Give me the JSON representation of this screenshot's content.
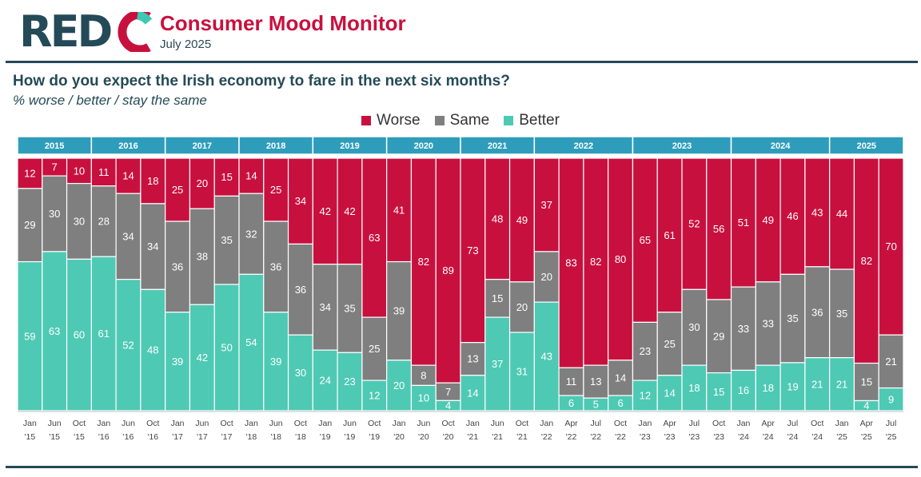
{
  "header": {
    "logo_red": "RED",
    "logo_c": "C",
    "title": "Consumer Mood Monitor",
    "subtitle": "July 2025"
  },
  "question": {
    "text": "How do you expect the Irish economy to fare in the next six months?",
    "sub": "% worse / better / stay the same"
  },
  "colors": {
    "worse": "#c8103e",
    "same": "#7f7f7f",
    "better": "#4ec9b4",
    "year_band": "#2e9dbb",
    "brand_dark": "#244a57",
    "brand_teal": "#3ec8b3"
  },
  "chart_data": {
    "type": "bar",
    "stacked": true,
    "legend_position": "top-center",
    "series": [
      {
        "name": "Worse",
        "values": [
          12,
          7,
          10,
          11,
          14,
          18,
          25,
          20,
          15,
          14,
          25,
          34,
          42,
          42,
          63,
          41,
          82,
          89,
          73,
          48,
          49,
          37,
          83,
          82,
          80,
          65,
          61,
          52,
          56,
          51,
          49,
          46,
          43,
          44,
          82,
          70
        ]
      },
      {
        "name": "Same",
        "values": [
          29,
          30,
          30,
          28,
          34,
          34,
          36,
          38,
          35,
          32,
          36,
          36,
          34,
          35,
          25,
          39,
          8,
          7,
          13,
          15,
          20,
          20,
          11,
          13,
          14,
          23,
          25,
          30,
          29,
          33,
          33,
          35,
          36,
          35,
          15,
          21
        ]
      },
      {
        "name": "Better",
        "values": [
          59,
          63,
          60,
          61,
          52,
          48,
          39,
          42,
          50,
          54,
          39,
          30,
          24,
          23,
          12,
          20,
          10,
          4,
          14,
          37,
          31,
          43,
          6,
          5,
          6,
          12,
          14,
          18,
          15,
          16,
          18,
          19,
          21,
          21,
          4,
          9
        ]
      }
    ],
    "categories_top": [
      "Jan",
      "Jun",
      "Oct",
      "Jan",
      "Jun",
      "Oct",
      "Jan",
      "Jun",
      "Oct",
      "Jan",
      "Jun",
      "Oct",
      "Jan",
      "Jun",
      "Oct",
      "Jan",
      "Jun",
      "Oct",
      "Jan",
      "Jun",
      "Oct",
      "Jan",
      "Apr",
      "Jul",
      "Oct",
      "Jan",
      "Apr",
      "Jul",
      "Oct",
      "Jan",
      "Apr",
      "Jul",
      "Oct",
      "Jan",
      "Apr",
      "Jul"
    ],
    "categories_bottom": [
      "'15",
      "'15",
      "'15",
      "'16",
      "'16",
      "'16",
      "'17",
      "'17",
      "'17",
      "'18",
      "'18",
      "'18",
      "'19",
      "'19",
      "'19",
      "'20",
      "'20",
      "'20",
      "'21",
      "'21",
      "'21",
      "'22",
      "'22",
      "'22",
      "'22",
      "'23",
      "'23",
      "'23",
      "'23",
      "'24",
      "'24",
      "'24",
      "'24",
      "'25",
      "'25",
      "'25"
    ],
    "year_groups": [
      {
        "label": "2015",
        "count": 3
      },
      {
        "label": "2016",
        "count": 3
      },
      {
        "label": "2017",
        "count": 3
      },
      {
        "label": "2018",
        "count": 3
      },
      {
        "label": "2019",
        "count": 3
      },
      {
        "label": "2020",
        "count": 3
      },
      {
        "label": "2021",
        "count": 3
      },
      {
        "label": "2022",
        "count": 4
      },
      {
        "label": "2023",
        "count": 4
      },
      {
        "label": "2024",
        "count": 4
      },
      {
        "label": "2025",
        "count": 3
      }
    ],
    "ylim": [
      0,
      100
    ]
  }
}
